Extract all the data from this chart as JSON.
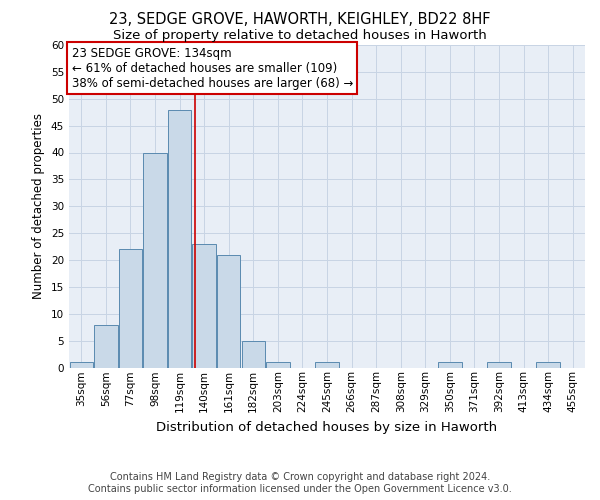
{
  "title": "23, SEDGE GROVE, HAWORTH, KEIGHLEY, BD22 8HF",
  "subtitle": "Size of property relative to detached houses in Haworth",
  "xlabel": "Distribution of detached houses by size in Haworth",
  "ylabel": "Number of detached properties",
  "bar_labels": [
    "35sqm",
    "56sqm",
    "77sqm",
    "98sqm",
    "119sqm",
    "140sqm",
    "161sqm",
    "182sqm",
    "203sqm",
    "224sqm",
    "245sqm",
    "266sqm",
    "287sqm",
    "308sqm",
    "329sqm",
    "350sqm",
    "371sqm",
    "392sqm",
    "413sqm",
    "434sqm",
    "455sqm"
  ],
  "bar_values": [
    1,
    8,
    22,
    40,
    48,
    23,
    21,
    5,
    1,
    0,
    1,
    0,
    0,
    0,
    0,
    1,
    0,
    1,
    0,
    1,
    0
  ],
  "bar_color": "#c9d9e8",
  "bar_edgecolor": "#5a8ab0",
  "vline_x": 4.62,
  "vline_color": "#cc0000",
  "annotation_text": "23 SEDGE GROVE: 134sqm\n← 61% of detached houses are smaller (109)\n38% of semi-detached houses are larger (68) →",
  "annotation_box_color": "white",
  "annotation_box_edgecolor": "#cc0000",
  "ylim": [
    0,
    60
  ],
  "yticks": [
    0,
    5,
    10,
    15,
    20,
    25,
    30,
    35,
    40,
    45,
    50,
    55,
    60
  ],
  "grid_color": "#c8d4e4",
  "background_color": "#e8eef6",
  "footer_text": "Contains HM Land Registry data © Crown copyright and database right 2024.\nContains public sector information licensed under the Open Government Licence v3.0.",
  "title_fontsize": 10.5,
  "subtitle_fontsize": 9.5,
  "xlabel_fontsize": 9.5,
  "ylabel_fontsize": 8.5,
  "tick_fontsize": 7.5,
  "annotation_fontsize": 8.5,
  "footer_fontsize": 7.0
}
